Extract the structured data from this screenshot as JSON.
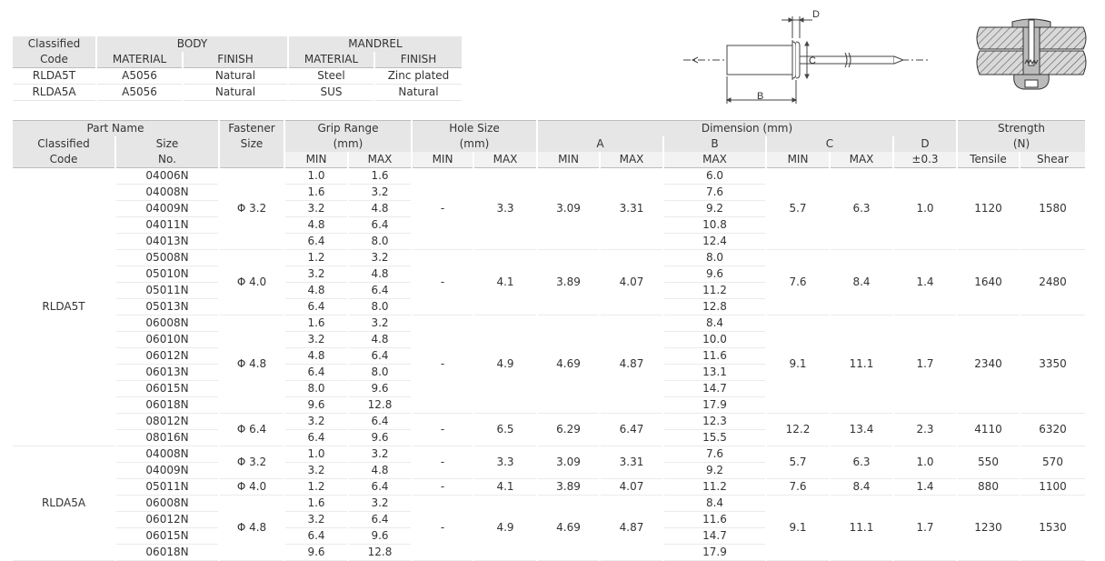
{
  "material_table": {
    "classified_label_1": "Classified",
    "classified_label_2": "Code",
    "body_label": "BODY",
    "mandrel_label": "MANDREL",
    "material_label": "MATERIAL",
    "finish_label": "FINISH",
    "rows": [
      {
        "code": "RLDA5T",
        "body_material": "A5056",
        "body_finish": "Natural",
        "mandrel_material": "Steel",
        "mandrel_finish": "Zinc plated"
      },
      {
        "code": "RLDA5A",
        "body_material": "A5056",
        "body_finish": "Natural",
        "mandrel_material": "SUS",
        "mandrel_finish": "Natural"
      }
    ]
  },
  "diagram": {
    "label_d": "D",
    "label_c": "C",
    "label_b": "B"
  },
  "spec_table": {
    "headers": {
      "part_name": "Part Name",
      "classified_1": "Classified",
      "classified_2": "Code",
      "size_1": "Size",
      "size_2": "No.",
      "fastener_1": "Fastener",
      "fastener_2": "Size",
      "grip_1": "Grip Range",
      "grip_2": "(mm)",
      "hole_1": "Hole Size",
      "hole_2": "(mm)",
      "dimension": "Dimension (mm)",
      "dim_a": "A",
      "dim_b": "B",
      "dim_c": "C",
      "dim_d": "D",
      "strength_1": "Strength",
      "strength_2": "(N)",
      "min": "MIN",
      "max": "MAX",
      "d_tol": "±0.3",
      "tensile": "Tensile",
      "shear": "Shear"
    },
    "codes": [
      "RLDA5T",
      "RLDA5A"
    ],
    "groups": [
      {
        "fastener": "Φ 3.2",
        "hole_min": "-",
        "hole_max": "3.3",
        "a_min": "3.09",
        "a_max": "3.31",
        "c_min": "5.7",
        "c_max": "6.3",
        "d": "1.0",
        "tensile": "1120",
        "shear": "1580",
        "rows": [
          [
            "04006N",
            "1.0",
            "1.6",
            "6.0"
          ],
          [
            "04008N",
            "1.6",
            "3.2",
            "7.6"
          ],
          [
            "04009N",
            "3.2",
            "4.8",
            "9.2"
          ],
          [
            "04011N",
            "4.8",
            "6.4",
            "10.8"
          ],
          [
            "04013N",
            "6.4",
            "8.0",
            "12.4"
          ]
        ]
      },
      {
        "fastener": "Φ 4.0",
        "hole_min": "-",
        "hole_max": "4.1",
        "a_min": "3.89",
        "a_max": "4.07",
        "c_min": "7.6",
        "c_max": "8.4",
        "d": "1.4",
        "tensile": "1640",
        "shear": "2480",
        "rows": [
          [
            "05008N",
            "1.2",
            "3.2",
            "8.0"
          ],
          [
            "05010N",
            "3.2",
            "4.8",
            "9.6"
          ],
          [
            "05011N",
            "4.8",
            "6.4",
            "11.2"
          ],
          [
            "05013N",
            "6.4",
            "8.0",
            "12.8"
          ]
        ]
      },
      {
        "fastener": "Φ 4.8",
        "hole_min": "-",
        "hole_max": "4.9",
        "a_min": "4.69",
        "a_max": "4.87",
        "c_min": "9.1",
        "c_max": "11.1",
        "d": "1.7",
        "tensile": "2340",
        "shear": "3350",
        "rows": [
          [
            "06008N",
            "1.6",
            "3.2",
            "8.4"
          ],
          [
            "06010N",
            "3.2",
            "4.8",
            "10.0"
          ],
          [
            "06012N",
            "4.8",
            "6.4",
            "11.6"
          ],
          [
            "06013N",
            "6.4",
            "8.0",
            "13.1"
          ],
          [
            "06015N",
            "8.0",
            "9.6",
            "14.7"
          ],
          [
            "06018N",
            "9.6",
            "12.8",
            "17.9"
          ]
        ]
      },
      {
        "fastener": "Φ 6.4",
        "hole_min": "-",
        "hole_max": "6.5",
        "a_min": "6.29",
        "a_max": "6.47",
        "c_min": "12.2",
        "c_max": "13.4",
        "d": "2.3",
        "tensile": "4110",
        "shear": "6320",
        "rows": [
          [
            "08012N",
            "3.2",
            "6.4",
            "12.3"
          ],
          [
            "08016N",
            "6.4",
            "9.6",
            "15.5"
          ]
        ]
      },
      {
        "fastener": "Φ 3.2",
        "hole_min": "-",
        "hole_max": "3.3",
        "a_min": "3.09",
        "a_max": "3.31",
        "c_min": "5.7",
        "c_max": "6.3",
        "d": "1.0",
        "tensile": "550",
        "shear": "570",
        "rows": [
          [
            "04008N",
            "1.0",
            "3.2",
            "7.6"
          ],
          [
            "04009N",
            "3.2",
            "4.8",
            "9.2"
          ]
        ]
      },
      {
        "fastener": "Φ 4.0",
        "hole_min": "-",
        "hole_max": "4.1",
        "a_min": "3.89",
        "a_max": "4.07",
        "c_min": "7.6",
        "c_max": "8.4",
        "d": "1.4",
        "tensile": "880",
        "shear": "1100",
        "rows": [
          [
            "05011N",
            "1.2",
            "6.4",
            "11.2"
          ]
        ]
      },
      {
        "fastener": "Φ 4.8",
        "hole_min": "-",
        "hole_max": "4.9",
        "a_min": "4.69",
        "a_max": "4.87",
        "c_min": "9.1",
        "c_max": "11.1",
        "d": "1.7",
        "tensile": "1230",
        "shear": "1530",
        "rows": [
          [
            "06008N",
            "1.6",
            "3.2",
            "8.4"
          ],
          [
            "06012N",
            "3.2",
            "6.4",
            "11.6"
          ],
          [
            "06015N",
            "6.4",
            "9.6",
            "14.7"
          ],
          [
            "06018N",
            "9.6",
            "12.8",
            "17.9"
          ]
        ]
      }
    ]
  }
}
